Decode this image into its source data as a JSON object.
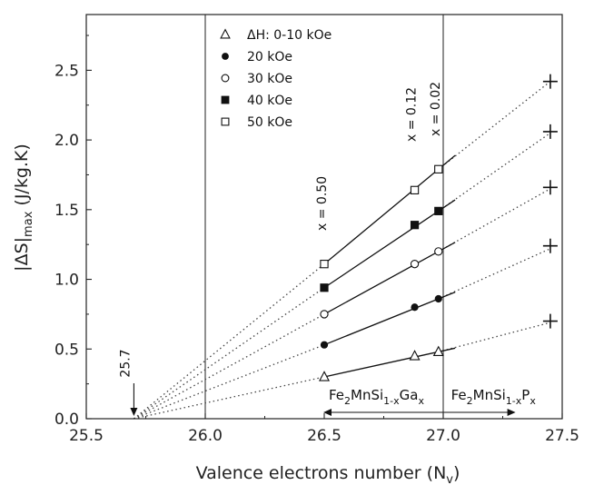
{
  "chart_data": {
    "type": "line",
    "title": "",
    "xlabel": "Valence electrons number (N",
    "xlabel_sub": "v",
    "xlabel_end": ")",
    "ylabel": "|ΔS|",
    "ylabel_sub": "max",
    "ylabel_unit": " (J/kg.K)",
    "xlim": [
      25.5,
      27.5
    ],
    "ylim": [
      0.0,
      2.9
    ],
    "xticks": [
      25.5,
      26.0,
      26.5,
      27.0,
      27.5
    ],
    "xtick_labels": [
      "25.5",
      "26.0",
      "26.5",
      "27.0",
      "27.5"
    ],
    "yticks": [
      0.0,
      0.5,
      1.0,
      1.5,
      2.0,
      2.5
    ],
    "ytick_labels": [
      "0.0",
      "0.5",
      "1.0",
      "1.5",
      "2.0",
      "2.5"
    ],
    "convergence_x": 25.7,
    "convergence_label": "25.7",
    "vertical_lines": [
      26.0,
      27.0
    ],
    "composition_labels": [
      {
        "x": 26.5,
        "text": "x = 0.50"
      },
      {
        "x": 26.88,
        "text": "x = 0.12"
      },
      {
        "x": 26.98,
        "text": "x = 0.02"
      }
    ],
    "series": [
      {
        "name": "ΔH: 0-10 kOe",
        "marker": "triangle-open",
        "x": [
          26.5,
          26.88,
          26.98
        ],
        "y": [
          0.3,
          0.45,
          0.48
        ],
        "extrap_y_at_27_45": 0.69,
        "plus_y": 0.7
      },
      {
        "name": "20 kOe",
        "marker": "circle-filled",
        "x": [
          26.5,
          26.88,
          26.98
        ],
        "y": [
          0.53,
          0.8,
          0.86
        ],
        "extrap_y_at_27_45": 1.22,
        "plus_y": 1.24
      },
      {
        "name": "30 kOe",
        "marker": "circle-open",
        "x": [
          26.5,
          26.88,
          26.98
        ],
        "y": [
          0.75,
          1.11,
          1.2
        ],
        "extrap_y_at_27_45": 1.65,
        "plus_y": 1.66
      },
      {
        "name": "40 kOe",
        "marker": "square-filled",
        "x": [
          26.5,
          26.88,
          26.98
        ],
        "y": [
          0.94,
          1.39,
          1.49
        ],
        "extrap_y_at_27_45": 2.05,
        "plus_y": 2.06
      },
      {
        "name": "50 kOe",
        "marker": "square-open",
        "x": [
          26.5,
          26.88,
          26.98
        ],
        "y": [
          1.11,
          1.64,
          1.79
        ],
        "extrap_y_at_27_45": 2.42,
        "plus_y": 2.42
      }
    ],
    "region_labels": {
      "ga": {
        "prefix": "Fe",
        "sub1": "2",
        "mid": "MnSi",
        "sub2": "1-x",
        "el": "Ga",
        "sub3": "x"
      },
      "p": {
        "prefix": "Fe",
        "sub1": "2",
        "mid": "MnSi",
        "sub2": "1-x",
        "el": "P",
        "sub3": "x"
      }
    },
    "plus_x": 27.45,
    "extrap_x_end": 27.45
  },
  "colors": {
    "axis": "#222222",
    "data": "#111111",
    "background": "#ffffff"
  }
}
